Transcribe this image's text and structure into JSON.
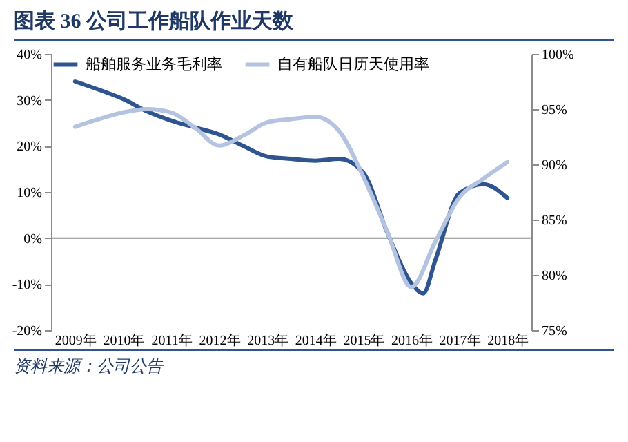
{
  "chart_data": {
    "type": "line",
    "title": "图表 36   公司工作船队作业天数",
    "annotations": [
      "资料来源：公司公告"
    ],
    "xlim": [
      2008.5,
      2018.5
    ],
    "xticks": [
      {
        "value": 2009,
        "label": "2009年"
      },
      {
        "value": 2010,
        "label": "2010年"
      },
      {
        "value": 2011,
        "label": "2011年"
      },
      {
        "value": 2012,
        "label": "2012年"
      },
      {
        "value": 2013,
        "label": "2013年"
      },
      {
        "value": 2014,
        "label": "2014年"
      },
      {
        "value": 2015,
        "label": "2015年"
      },
      {
        "value": 2016,
        "label": "2016年"
      },
      {
        "value": 2017,
        "label": "2017年"
      },
      {
        "value": 2018,
        "label": "2018年"
      }
    ],
    "ylim": [
      -20,
      40
    ],
    "yticks": [
      {
        "value": -20,
        "label": "-20%"
      },
      {
        "value": -10,
        "label": "-10%"
      },
      {
        "value": 0,
        "label": "0%"
      },
      {
        "value": 10,
        "label": "10%"
      },
      {
        "value": 20,
        "label": "20%"
      },
      {
        "value": 30,
        "label": "30%"
      },
      {
        "value": 40,
        "label": "40%"
      }
    ],
    "y2lim": [
      75,
      100
    ],
    "y2ticks": [
      {
        "value": 75,
        "label": "75%"
      },
      {
        "value": 80,
        "label": "80%"
      },
      {
        "value": 85,
        "label": "85%"
      },
      {
        "value": 90,
        "label": "90%"
      },
      {
        "value": 95,
        "label": "95%"
      },
      {
        "value": 100,
        "label": "100%"
      }
    ],
    "ref_lines": [
      {
        "axis": "y",
        "value": 0,
        "color": "#8c8c8c"
      }
    ],
    "legend": "top",
    "grid": false,
    "series": [
      {
        "name": "船舶服务业务毛利率",
        "color": "#2e5590",
        "x": [
          2009,
          2009.5,
          2010,
          2010.5,
          2011,
          2011.5,
          2012,
          2012.5,
          2013,
          2013.5,
          2014,
          2014.5,
          2015,
          2015.5,
          2016,
          2016.25,
          2016.5,
          2017,
          2017.5,
          2018
        ],
        "values": [
          34,
          32.2,
          30.2,
          27.5,
          25.5,
          24,
          22.5,
          20,
          17.7,
          17.2,
          16.8,
          17.2,
          14.2,
          1.2,
          -9.8,
          -12,
          -4.8,
          9.7,
          11.7,
          8.7
        ]
      },
      {
        "name": "自有船队日历天使用率",
        "color": "#b4c3e0",
        "axis": "y2",
        "x": [
          2009,
          2009.5,
          2010,
          2010.5,
          2011,
          2011.5,
          2012,
          2012.5,
          2013,
          2013.5,
          2014,
          2014.5,
          2015,
          2015.5,
          2016,
          2016.5,
          2017,
          2017.5,
          2018
        ],
        "values": [
          93.4,
          94.1,
          94.7,
          95,
          94.7,
          93.3,
          91.7,
          92.6,
          93.8,
          94.1,
          94.3,
          93,
          88.9,
          83.9,
          78.9,
          83,
          87,
          88.7,
          90.2
        ]
      }
    ]
  }
}
